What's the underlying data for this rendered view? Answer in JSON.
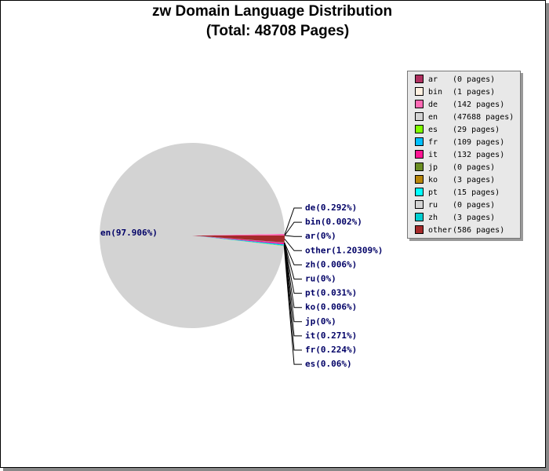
{
  "chart_data": {
    "type": "pie",
    "title": "zw Domain Language Distribution",
    "subtitle": "(Total: 48708 Pages)",
    "categories": [
      "ar",
      "bin",
      "de",
      "en",
      "es",
      "fr",
      "it",
      "jp",
      "ko",
      "pt",
      "ru",
      "zh",
      "other"
    ],
    "values": [
      0,
      1,
      142,
      47688,
      29,
      109,
      132,
      0,
      3,
      15,
      0,
      3,
      586
    ],
    "value_labels": [
      "(0 pages)",
      "(1 pages)",
      "(142 pages)",
      "(47688 pages)",
      "(29 pages)",
      "(109 pages)",
      "(132 pages)",
      "(0 pages)",
      "(3 pages)",
      "(15 pages)",
      "(0 pages)",
      "(3 pages)",
      "(586 pages)"
    ],
    "slice_labels": [
      "ar(0%)",
      "bin(0.002%)",
      "de(0.292%)",
      "en(97.906%)",
      "es(0.06%)",
      "fr(0.224%)",
      "it(0.271%)",
      "jp(0%)",
      "ko(0.006%)",
      "pt(0.031%)",
      "ru(0%)",
      "zh(0.006%)",
      "other(1.20309%)"
    ],
    "colors": [
      "#b03060",
      "#fff0e0",
      "#ff69b4",
      "#d3d3d3",
      "#7fff00",
      "#00bfff",
      "#ff1493",
      "#6b8e23",
      "#b8860b",
      "#00ffff",
      "#d3d3d3",
      "#00ced1",
      "#a52a2a"
    ],
    "legend": "right"
  }
}
